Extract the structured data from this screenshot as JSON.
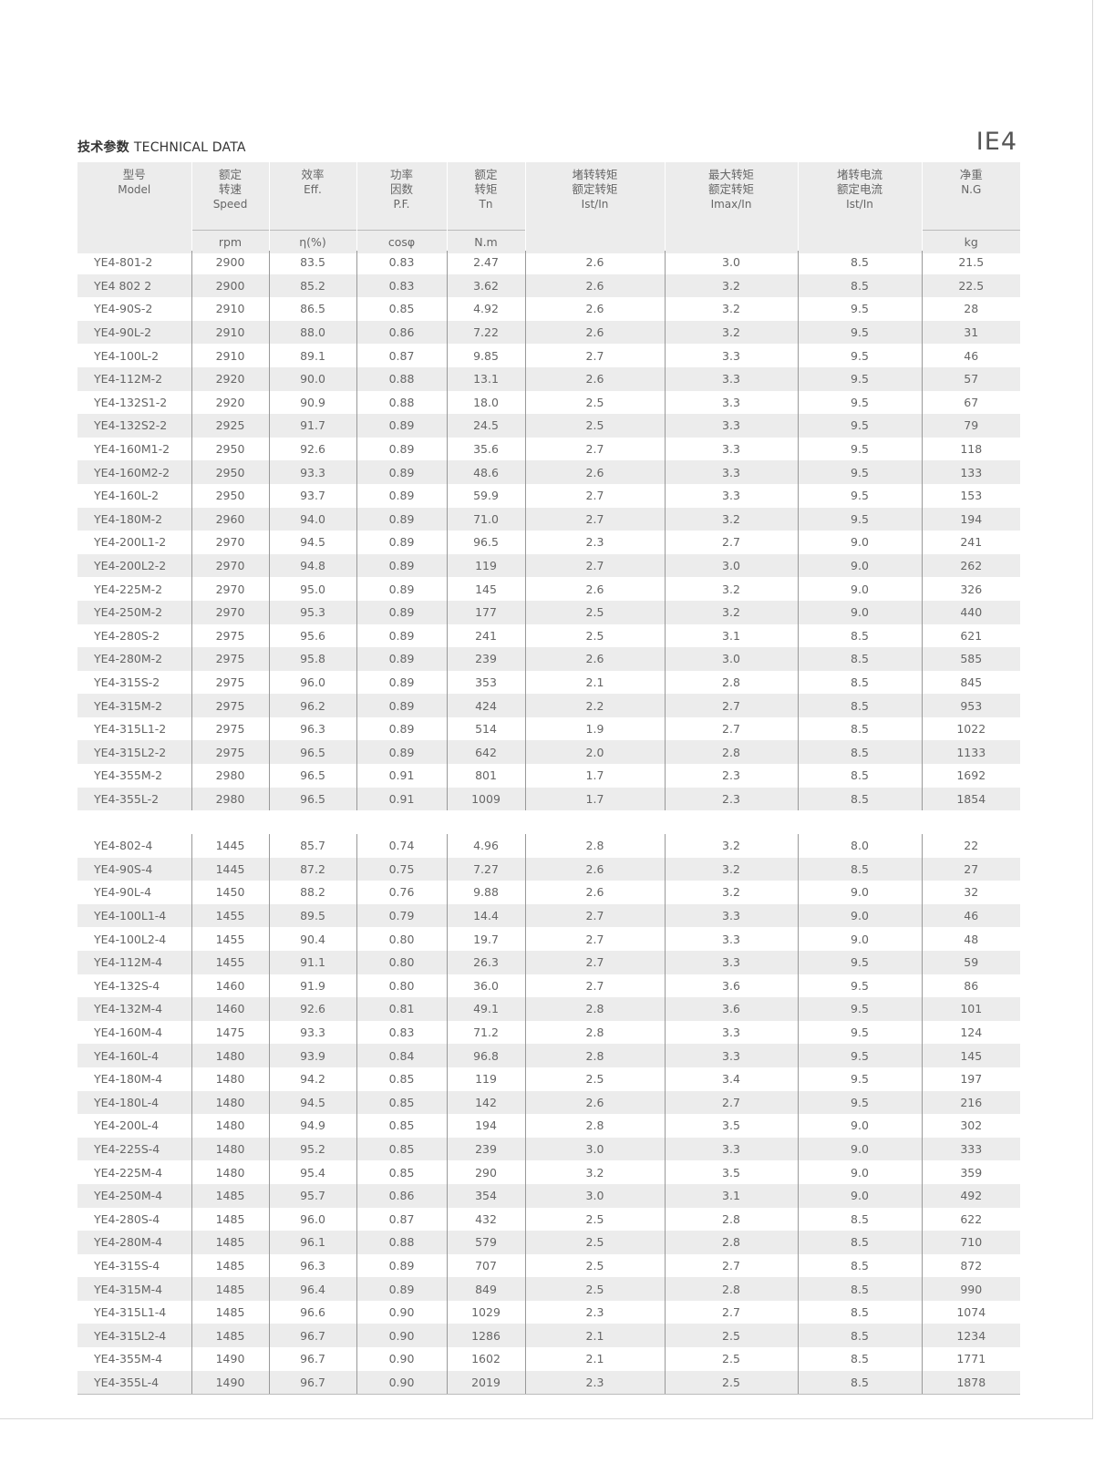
{
  "header": {
    "title_cn": "技术参数",
    "title_en": "TECHNICAL DATA",
    "badge": "IE4"
  },
  "columns": [
    {
      "cn": "型号",
      "en": "Model",
      "sym": "",
      "unit": ""
    },
    {
      "cn": "额定\n转速",
      "en": "Speed",
      "sym": "",
      "unit": "rpm"
    },
    {
      "cn": "效率",
      "en": "Eff.",
      "sym": "",
      "unit": "η(%)"
    },
    {
      "cn": "功率\n因数",
      "en": "P.F.",
      "sym": "",
      "unit": "cosφ"
    },
    {
      "cn": "额定\n转矩",
      "en": "Tn",
      "sym": "",
      "unit": "N.m"
    },
    {
      "cn": "堵转转矩\n额定转矩",
      "en": "Ist/In",
      "sym": "",
      "unit": ""
    },
    {
      "cn": "最大转矩\n额定转矩",
      "en": "Imax/In",
      "sym": "",
      "unit": ""
    },
    {
      "cn": "堵转电流\n额定电流",
      "en": "Ist/In",
      "sym": "",
      "unit": ""
    },
    {
      "cn": "净重",
      "en": "N.G",
      "sym": "",
      "unit": "kg"
    }
  ],
  "groups": [
    [
      [
        "YE4-801-2",
        "2900",
        "83.5",
        "0.83",
        "2.47",
        "2.6",
        "3.0",
        "8.5",
        "21.5"
      ],
      [
        "YE4 802 2",
        "2900",
        "85.2",
        "0.83",
        "3.62",
        "2.6",
        "3.2",
        "8.5",
        "22.5"
      ],
      [
        "YE4-90S-2",
        "2910",
        "86.5",
        "0.85",
        "4.92",
        "2.6",
        "3.2",
        "9.5",
        "28"
      ],
      [
        "YE4-90L-2",
        "2910",
        "88.0",
        "0.86",
        "7.22",
        "2.6",
        "3.2",
        "9.5",
        "31"
      ],
      [
        "YE4-100L-2",
        "2910",
        "89.1",
        "0.87",
        "9.85",
        "2.7",
        "3.3",
        "9.5",
        "46"
      ],
      [
        "YE4-112M-2",
        "2920",
        "90.0",
        "0.88",
        "13.1",
        "2.6",
        "3.3",
        "9.5",
        "57"
      ],
      [
        "YE4-132S1-2",
        "2920",
        "90.9",
        "0.88",
        "18.0",
        "2.5",
        "3.3",
        "9.5",
        "67"
      ],
      [
        "YE4-132S2-2",
        "2925",
        "91.7",
        "0.89",
        "24.5",
        "2.5",
        "3.3",
        "9.5",
        "79"
      ],
      [
        "YE4-160M1-2",
        "2950",
        "92.6",
        "0.89",
        "35.6",
        "2.7",
        "3.3",
        "9.5",
        "118"
      ],
      [
        "YE4-160M2-2",
        "2950",
        "93.3",
        "0.89",
        "48.6",
        "2.6",
        "3.3",
        "9.5",
        "133"
      ],
      [
        "YE4-160L-2",
        "2950",
        "93.7",
        "0.89",
        "59.9",
        "2.7",
        "3.3",
        "9.5",
        "153"
      ],
      [
        "YE4-180M-2",
        "2960",
        "94.0",
        "0.89",
        "71.0",
        "2.7",
        "3.2",
        "9.5",
        "194"
      ],
      [
        "YE4-200L1-2",
        "2970",
        "94.5",
        "0.89",
        "96.5",
        "2.3",
        "2.7",
        "9.0",
        "241"
      ],
      [
        "YE4-200L2-2",
        "2970",
        "94.8",
        "0.89",
        "119",
        "2.7",
        "3.0",
        "9.0",
        "262"
      ],
      [
        "YE4-225M-2",
        "2970",
        "95.0",
        "0.89",
        "145",
        "2.6",
        "3.2",
        "9.0",
        "326"
      ],
      [
        "YE4-250M-2",
        "2970",
        "95.3",
        "0.89",
        "177",
        "2.5",
        "3.2",
        "9.0",
        "440"
      ],
      [
        "YE4-280S-2",
        "2975",
        "95.6",
        "0.89",
        "241",
        "2.5",
        "3.1",
        "8.5",
        "621"
      ],
      [
        "YE4-280M-2",
        "2975",
        "95.8",
        "0.89",
        "239",
        "2.6",
        "3.0",
        "8.5",
        "585"
      ],
      [
        "YE4-315S-2",
        "2975",
        "96.0",
        "0.89",
        "353",
        "2.1",
        "2.8",
        "8.5",
        "845"
      ],
      [
        "YE4-315M-2",
        "2975",
        "96.2",
        "0.89",
        "424",
        "2.2",
        "2.7",
        "8.5",
        "953"
      ],
      [
        "YE4-315L1-2",
        "2975",
        "96.3",
        "0.89",
        "514",
        "1.9",
        "2.7",
        "8.5",
        "1022"
      ],
      [
        "YE4-315L2-2",
        "2975",
        "96.5",
        "0.89",
        "642",
        "2.0",
        "2.8",
        "8.5",
        "1133"
      ],
      [
        "YE4-355M-2",
        "2980",
        "96.5",
        "0.91",
        "801",
        "1.7",
        "2.3",
        "8.5",
        "1692"
      ],
      [
        "YE4-355L-2",
        "2980",
        "96.5",
        "0.91",
        "1009",
        "1.7",
        "2.3",
        "8.5",
        "1854"
      ]
    ],
    [
      [
        "YE4-802-4",
        "1445",
        "85.7",
        "0.74",
        "4.96",
        "2.8",
        "3.2",
        "8.0",
        "22"
      ],
      [
        "YE4-90S-4",
        "1445",
        "87.2",
        "0.75",
        "7.27",
        "2.6",
        "3.2",
        "8.5",
        "27"
      ],
      [
        "YE4-90L-4",
        "1450",
        "88.2",
        "0.76",
        "9.88",
        "2.6",
        "3.2",
        "9.0",
        "32"
      ],
      [
        "YE4-100L1-4",
        "1455",
        "89.5",
        "0.79",
        "14.4",
        "2.7",
        "3.3",
        "9.0",
        "46"
      ],
      [
        "YE4-100L2-4",
        "1455",
        "90.4",
        "0.80",
        "19.7",
        "2.7",
        "3.3",
        "9.0",
        "48"
      ],
      [
        "YE4-112M-4",
        "1455",
        "91.1",
        "0.80",
        "26.3",
        "2.7",
        "3.3",
        "9.5",
        "59"
      ],
      [
        "YE4-132S-4",
        "1460",
        "91.9",
        "0.80",
        "36.0",
        "2.7",
        "3.6",
        "9.5",
        "86"
      ],
      [
        "YE4-132M-4",
        "1460",
        "92.6",
        "0.81",
        "49.1",
        "2.8",
        "3.6",
        "9.5",
        "101"
      ],
      [
        "YE4-160M-4",
        "1475",
        "93.3",
        "0.83",
        "71.2",
        "2.8",
        "3.3",
        "9.5",
        "124"
      ],
      [
        "YE4-160L-4",
        "1480",
        "93.9",
        "0.84",
        "96.8",
        "2.8",
        "3.3",
        "9.5",
        "145"
      ],
      [
        "YE4-180M-4",
        "1480",
        "94.2",
        "0.85",
        "119",
        "2.5",
        "3.4",
        "9.5",
        "197"
      ],
      [
        "YE4-180L-4",
        "1480",
        "94.5",
        "0.85",
        "142",
        "2.6",
        "2.7",
        "9.5",
        "216"
      ],
      [
        "YE4-200L-4",
        "1480",
        "94.9",
        "0.85",
        "194",
        "2.8",
        "3.5",
        "9.0",
        "302"
      ],
      [
        "YE4-225S-4",
        "1480",
        "95.2",
        "0.85",
        "239",
        "3.0",
        "3.3",
        "9.0",
        "333"
      ],
      [
        "YE4-225M-4",
        "1480",
        "95.4",
        "0.85",
        "290",
        "3.2",
        "3.5",
        "9.0",
        "359"
      ],
      [
        "YE4-250M-4",
        "1485",
        "95.7",
        "0.86",
        "354",
        "3.0",
        "3.1",
        "9.0",
        "492"
      ],
      [
        "YE4-280S-4",
        "1485",
        "96.0",
        "0.87",
        "432",
        "2.5",
        "2.8",
        "8.5",
        "622"
      ],
      [
        "YE4-280M-4",
        "1485",
        "96.1",
        "0.88",
        "579",
        "2.5",
        "2.8",
        "8.5",
        "710"
      ],
      [
        "YE4-315S-4",
        "1485",
        "96.3",
        "0.89",
        "707",
        "2.5",
        "2.7",
        "8.5",
        "872"
      ],
      [
        "YE4-315M-4",
        "1485",
        "96.4",
        "0.89",
        "849",
        "2.5",
        "2.8",
        "8.5",
        "990"
      ],
      [
        "YE4-315L1-4",
        "1485",
        "96.6",
        "0.90",
        "1029",
        "2.3",
        "2.7",
        "8.5",
        "1074"
      ],
      [
        "YE4-315L2-4",
        "1485",
        "96.7",
        "0.90",
        "1286",
        "2.1",
        "2.5",
        "8.5",
        "1234"
      ],
      [
        "YE4-355M-4",
        "1490",
        "96.7",
        "0.90",
        "1602",
        "2.1",
        "2.5",
        "8.5",
        "1771"
      ],
      [
        "YE4-355L-4",
        "1490",
        "96.7",
        "0.90",
        "2019",
        "2.3",
        "2.5",
        "8.5",
        "1878"
      ]
    ]
  ]
}
